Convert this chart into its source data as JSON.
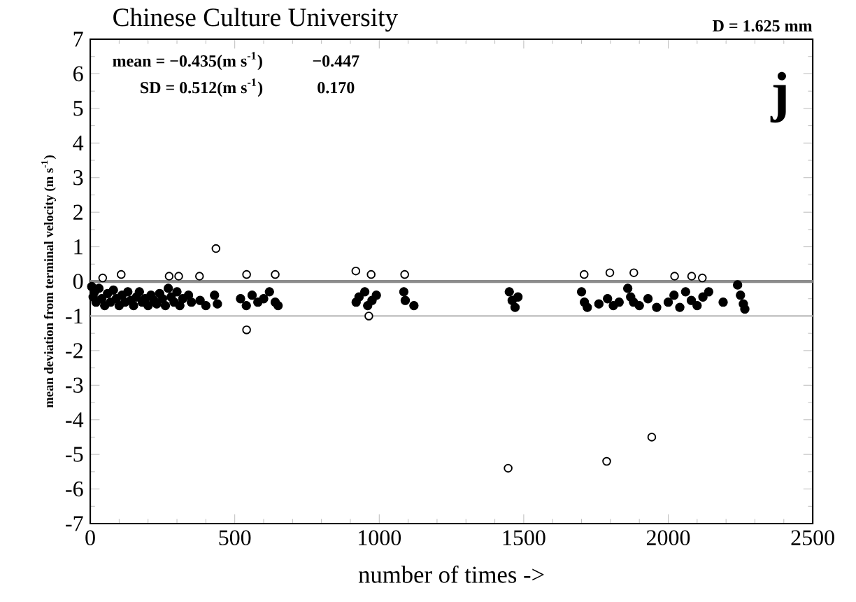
{
  "chart_data": {
    "type": "scatter",
    "title": "Chinese Culture University",
    "subtitle": "D =  1.625 mm",
    "xlabel": "number of times  ->",
    "ylabel": "mean deviation from terminal velocity (m s$^{-1}$)",
    "annotations": [
      "mean =  −0.435(m s$^{-1}$)",
      "−0.447",
      "SD =  0.512(m s$^{-1}$)",
      "0.170",
      "j"
    ],
    "xlim": [
      0,
      2500
    ],
    "ylim": [
      -7,
      7
    ],
    "xticks": [
      0,
      500,
      1000,
      1500,
      2000,
      2500
    ],
    "yticks": [
      -7,
      -6,
      -5,
      -4,
      -3,
      -2,
      -1,
      0,
      1,
      2,
      3,
      4,
      5,
      6,
      7
    ],
    "marker": "circle",
    "grid": false,
    "ref_lines": [
      {
        "axis": "y",
        "value": 0,
        "color": "#8c8c8c"
      },
      {
        "axis": "y",
        "value": -1,
        "color": "#bdbdbd"
      }
    ],
    "series": [
      {
        "color": "#000000",
        "x": [
          5,
          10,
          15,
          20,
          30,
          40,
          50,
          60,
          70,
          80,
          90,
          100,
          110,
          120,
          130,
          140,
          150,
          160,
          170,
          180,
          190,
          200,
          210,
          220,
          230,
          240,
          250,
          260,
          270,
          280,
          290,
          300,
          310,
          320,
          340,
          350,
          380,
          400,
          430,
          440,
          520,
          540,
          560,
          580,
          600,
          620,
          640,
          650,
          920,
          930,
          950,
          960,
          975,
          990,
          1085,
          1090,
          1120,
          1450,
          1460,
          1470,
          1480,
          1700,
          1710,
          1720,
          1760,
          1790,
          1810,
          1830,
          1860,
          1870,
          1880,
          1900,
          1930,
          1960,
          2000,
          2020,
          2040,
          2060,
          2080,
          2100,
          2120,
          2140,
          2190,
          2240,
          2250,
          2260,
          2265
        ],
        "values": [
          -0.15,
          -0.45,
          -0.3,
          -0.6,
          -0.2,
          -0.5,
          -0.7,
          -0.35,
          -0.6,
          -0.25,
          -0.5,
          -0.7,
          -0.4,
          -0.6,
          -0.3,
          -0.55,
          -0.7,
          -0.45,
          -0.3,
          -0.6,
          -0.5,
          -0.7,
          -0.4,
          -0.55,
          -0.65,
          -0.35,
          -0.5,
          -0.7,
          -0.2,
          -0.45,
          -0.6,
          -0.3,
          -0.7,
          -0.5,
          -0.4,
          -0.6,
          -0.55,
          -0.7,
          -0.4,
          -0.65,
          -0.5,
          -0.7,
          -0.4,
          -0.6,
          -0.5,
          -0.3,
          -0.6,
          -0.7,
          -0.6,
          -0.45,
          -0.3,
          -0.7,
          -0.55,
          -0.4,
          -0.3,
          -0.55,
          -0.7,
          -0.3,
          -0.55,
          -0.75,
          -0.45,
          -0.3,
          -0.6,
          -0.75,
          -0.65,
          -0.5,
          -0.7,
          -0.6,
          -0.2,
          -0.45,
          -0.6,
          -0.7,
          -0.5,
          -0.75,
          -0.6,
          -0.4,
          -0.75,
          -0.3,
          -0.55,
          -0.7,
          -0.45,
          -0.3,
          -0.6,
          -0.1,
          -0.4,
          -0.65,
          -0.8
        ]
      },
      {
        "color": "#000000",
        "x": [
          43,
          107,
          273,
          306,
          378,
          435,
          541,
          640,
          541,
          919,
          972,
          964,
          1088,
          1709,
          1798,
          1881,
          2022,
          2081,
          2118,
          1446,
          1787,
          1943
        ],
        "values": [
          0.1,
          0.2,
          0.15,
          0.15,
          0.15,
          0.95,
          0.2,
          0.2,
          -1.4,
          0.3,
          0.2,
          -1.0,
          0.2,
          0.2,
          0.25,
          0.25,
          0.15,
          0.15,
          0.1,
          -5.4,
          -5.2,
          -4.5
        ]
      }
    ]
  }
}
